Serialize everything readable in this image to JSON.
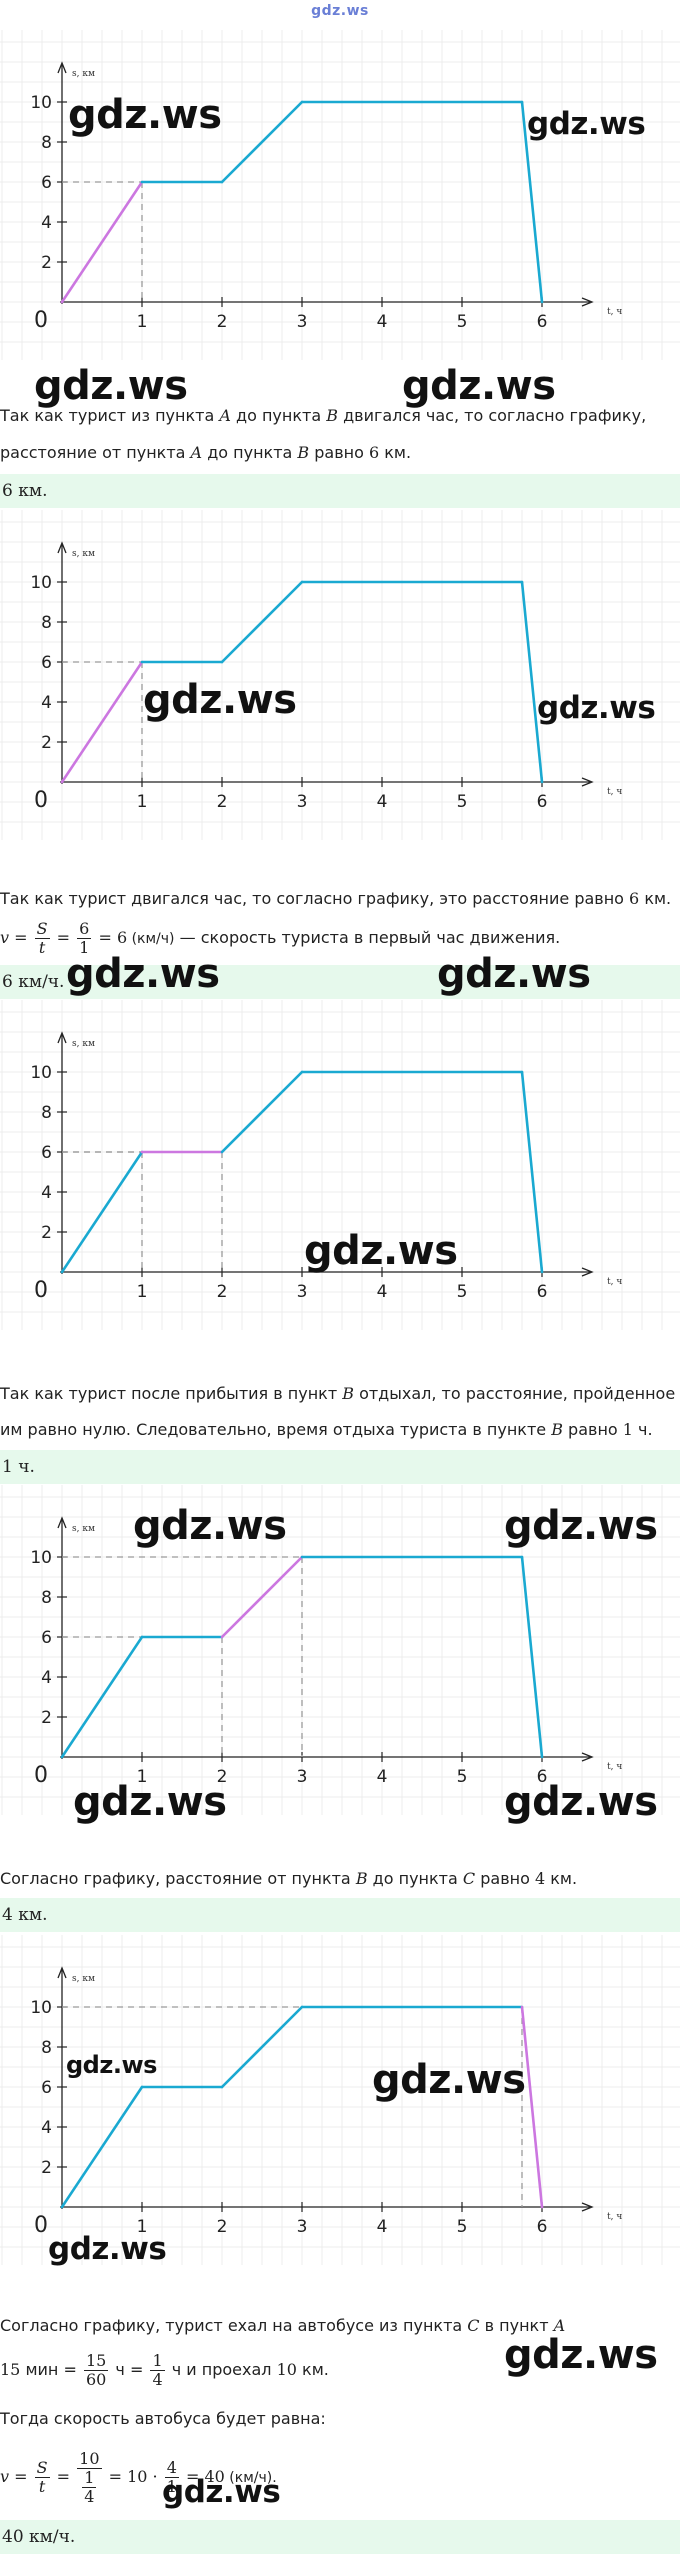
{
  "header": {
    "site": "gdz.ws"
  },
  "watermark": "gdz.ws",
  "graph": {
    "y_label": "s, км",
    "x_label": "t, ч",
    "origin": "0",
    "x_ticks": [
      "1",
      "2",
      "3",
      "4",
      "5",
      "6"
    ],
    "y_ticks": [
      "2",
      "4",
      "6",
      "8",
      "10"
    ],
    "line_color": "#1aa9d1",
    "highlight_color": "#cc77e0",
    "dash_color": "#9a9a9a",
    "path_points": [
      [
        0,
        0
      ],
      [
        1,
        6
      ],
      [
        2,
        6
      ],
      [
        3,
        10
      ],
      [
        5.75,
        10
      ],
      [
        6,
        0
      ]
    ]
  },
  "sections": [
    {
      "id": "s1",
      "lines": [
        {
          "parts": [
            "Так как турист из пункта ",
            "A",
            " до пункта ",
            "B",
            " двигался час, то согласно графику,"
          ]
        },
        {
          "parts": [
            "расстояние от пункта ",
            "A",
            " до пункта ",
            "B",
            " равно ",
            "6",
            " км."
          ]
        }
      ],
      "answer": {
        "value": "6",
        "unit": " км."
      }
    },
    {
      "id": "s2",
      "lines": [
        {
          "parts": [
            "Так как турист двигался час, то согласно графику, это расстояние равно ",
            "6",
            " км."
          ]
        },
        {
          "formula": {
            "v": "v",
            "eq": " = ",
            "S": "S",
            "t": "t",
            "six": "6",
            "one": "1",
            "res": "6",
            "unit": " (км/ч)",
            "tail": " — скорость туриста в первый час движения."
          }
        }
      ],
      "answer": {
        "value": "6",
        "unit": " км/ч."
      }
    },
    {
      "id": "s3",
      "lines": [
        {
          "parts": [
            "Так как турист после прибытия в пункт ",
            "B",
            " отдыхал, то расстояние, пройденное"
          ]
        },
        {
          "parts": [
            "им равно нулю. Следовательно, время отдыха туриста в пункте ",
            "B",
            " равно ",
            "1",
            " ч."
          ]
        }
      ],
      "answer": {
        "value": "1",
        "unit": " ч."
      }
    },
    {
      "id": "s4",
      "lines": [
        {
          "parts": [
            "Согласно графику, расстояние от пункта ",
            "B",
            " до пункта ",
            "C",
            " равно ",
            "4",
            " км."
          ]
        }
      ],
      "answer": {
        "value": "4",
        "unit": " км."
      }
    },
    {
      "id": "s5",
      "lines": [
        {
          "parts": [
            "Согласно графику, турист ехал на автобусе из пункта ",
            "C",
            " в пункт ",
            "A"
          ]
        },
        {
          "formula": {
            "a": "15",
            "b": " мин = ",
            "n1": "15",
            "d1": "60",
            "c": " ч = ",
            "n2": "1",
            "d2": "4",
            "d": " ч и проехал ",
            "e": "10",
            "f": " км."
          }
        },
        {
          "parts": [
            "Тогда скорость автобуса будет равна:"
          ]
        },
        {
          "formula2": {
            "v": "v",
            "S": "S",
            "t": "t",
            "n": "10",
            "dn": "1",
            "dd": "4",
            "m": "10",
            "dot": " · ",
            "n3": "4",
            "d3": "1",
            "res": "40",
            "unit": " (км/ч)."
          }
        }
      ],
      "answer": {
        "value": "40",
        "unit": " км/ч."
      }
    }
  ]
}
